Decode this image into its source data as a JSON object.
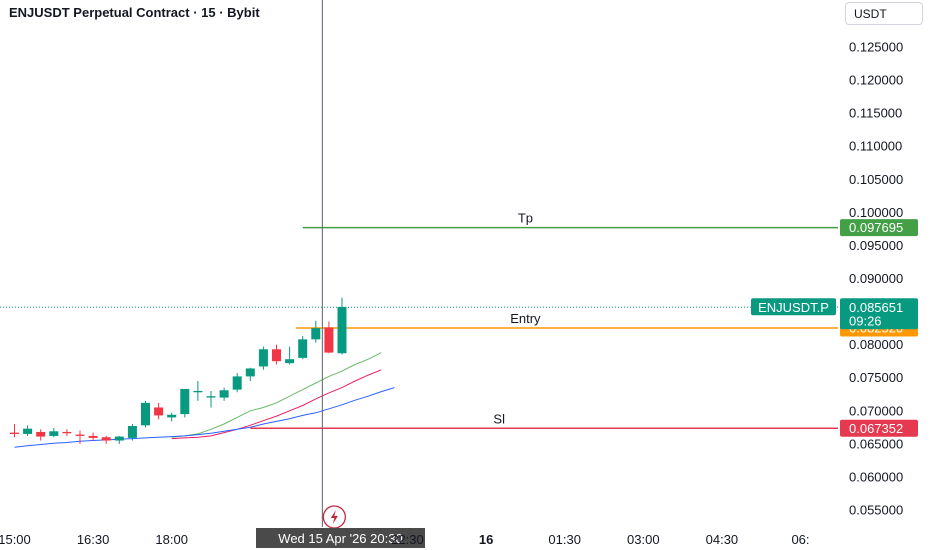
{
  "header": {
    "title": "ENJUSDT Perpetual Contract · 15 · Bybit",
    "currency": "USDT"
  },
  "chart_data": {
    "type": "candlestick",
    "price_axis": {
      "ylim": [
        0.0525,
        0.128
      ],
      "ticks": [
        "0.125000",
        "0.120000",
        "0.115000",
        "0.110000",
        "0.105000",
        "0.100000",
        "0.095000",
        "0.090000",
        "0.085000",
        "0.080000",
        "0.075000",
        "0.070000",
        "0.065000",
        "0.060000",
        "0.055000"
      ]
    },
    "time_axis": {
      "labels": [
        {
          "t": 0,
          "label": "15:00"
        },
        {
          "t": 6,
          "label": "16:30"
        },
        {
          "t": 12,
          "label": "18:00"
        },
        {
          "t": 30,
          "label": "22:30"
        },
        {
          "t": 36,
          "label": "16",
          "bold": true
        },
        {
          "t": 42,
          "label": "01:30"
        },
        {
          "t": 48,
          "label": "03:00"
        },
        {
          "t": 54,
          "label": "04:30"
        },
        {
          "t": 60,
          "label": "06:"
        }
      ],
      "crosshair": {
        "t": 23.5,
        "label": "Wed 15 Apr '26   20:30"
      }
    },
    "candles": [
      {
        "o": 0.0667,
        "h": 0.068,
        "l": 0.066,
        "c": 0.0665
      },
      {
        "o": 0.0665,
        "h": 0.0678,
        "l": 0.0662,
        "c": 0.0673
      },
      {
        "o": 0.0668,
        "h": 0.0672,
        "l": 0.0655,
        "c": 0.0661
      },
      {
        "o": 0.0662,
        "h": 0.0674,
        "l": 0.066,
        "c": 0.0669
      },
      {
        "o": 0.0668,
        "h": 0.0672,
        "l": 0.0662,
        "c": 0.0666
      },
      {
        "o": 0.0664,
        "h": 0.067,
        "l": 0.065,
        "c": 0.0662
      },
      {
        "o": 0.0662,
        "h": 0.0667,
        "l": 0.0655,
        "c": 0.0659
      },
      {
        "o": 0.066,
        "h": 0.0662,
        "l": 0.065,
        "c": 0.0655
      },
      {
        "o": 0.0655,
        "h": 0.0662,
        "l": 0.065,
        "c": 0.0661
      },
      {
        "o": 0.0659,
        "h": 0.068,
        "l": 0.0655,
        "c": 0.0677
      },
      {
        "o": 0.0678,
        "h": 0.0715,
        "l": 0.0675,
        "c": 0.0712
      },
      {
        "o": 0.0705,
        "h": 0.0712,
        "l": 0.0687,
        "c": 0.0693
      },
      {
        "o": 0.069,
        "h": 0.0697,
        "l": 0.0684,
        "c": 0.0694
      },
      {
        "o": 0.0695,
        "h": 0.0733,
        "l": 0.069,
        "c": 0.0733
      },
      {
        "o": 0.0728,
        "h": 0.0745,
        "l": 0.0715,
        "c": 0.073
      },
      {
        "o": 0.072,
        "h": 0.073,
        "l": 0.0705,
        "c": 0.0722
      },
      {
        "o": 0.072,
        "h": 0.0735,
        "l": 0.0715,
        "c": 0.0731
      },
      {
        "o": 0.0732,
        "h": 0.0757,
        "l": 0.0728,
        "c": 0.0752
      },
      {
        "o": 0.0752,
        "h": 0.0765,
        "l": 0.0745,
        "c": 0.0764
      },
      {
        "o": 0.0767,
        "h": 0.0797,
        "l": 0.0762,
        "c": 0.0793
      },
      {
        "o": 0.0793,
        "h": 0.08,
        "l": 0.077,
        "c": 0.0775
      },
      {
        "o": 0.0772,
        "h": 0.0797,
        "l": 0.077,
        "c": 0.0778
      },
      {
        "o": 0.078,
        "h": 0.0813,
        "l": 0.0778,
        "c": 0.0808
      },
      {
        "o": 0.0808,
        "h": 0.0836,
        "l": 0.0803,
        "c": 0.0825
      },
      {
        "o": 0.0826,
        "h": 0.0835,
        "l": 0.0787,
        "c": 0.0788
      },
      {
        "o": 0.0787,
        "h": 0.0871,
        "l": 0.0785,
        "c": 0.0857
      }
    ],
    "indicators": [
      {
        "color": "#66bb6a",
        "t0": 12,
        "values": [
          0.066,
          0.0662,
          0.0665,
          0.0672,
          0.068,
          0.069,
          0.07,
          0.0705,
          0.0712,
          0.0722,
          0.0732,
          0.0742,
          0.0752,
          0.076,
          0.077,
          0.0778,
          0.0788
        ]
      },
      {
        "color": "#e91e63",
        "t0": 12,
        "values": [
          0.0658,
          0.0659,
          0.066,
          0.0662,
          0.0667,
          0.0672,
          0.0678,
          0.0685,
          0.0692,
          0.07,
          0.0708,
          0.0718,
          0.0727,
          0.0735,
          0.0745,
          0.0754,
          0.0762
        ]
      },
      {
        "color": "#2962ff",
        "t0": 0,
        "values": [
          0.0645,
          0.0647,
          0.0649,
          0.0651,
          0.0652,
          0.0654,
          0.0655,
          0.0656,
          0.0657,
          0.0658,
          0.0659,
          0.066,
          0.0661,
          0.0662,
          0.0664,
          0.0666,
          0.0669,
          0.0672,
          0.0675,
          0.068,
          0.0684,
          0.0688,
          0.0693,
          0.0697,
          0.0703,
          0.0709,
          0.0716,
          0.0722,
          0.0729,
          0.0735
        ]
      }
    ],
    "levels": [
      {
        "name": "Tp",
        "price": 0.097695,
        "label": "0.097695",
        "color": "#43a047",
        "t_start": 22,
        "text_t": 39
      },
      {
        "name": "Entry",
        "price": 0.08252,
        "label": "0.082520",
        "color": "#ff9800",
        "t_start": 21.5,
        "text_t": 39
      },
      {
        "name": "Sl",
        "price": 0.067352,
        "label": "0.067352",
        "color": "#e53950",
        "t_start": 18,
        "text_t": 37
      }
    ],
    "last_price": {
      "price": 0.085651,
      "label": "0.085651",
      "countdown": "09:26",
      "symbol": "ENJUSDT.P",
      "color": "#089981"
    },
    "colors": {
      "up": "#089981",
      "down": "#f23645"
    }
  }
}
